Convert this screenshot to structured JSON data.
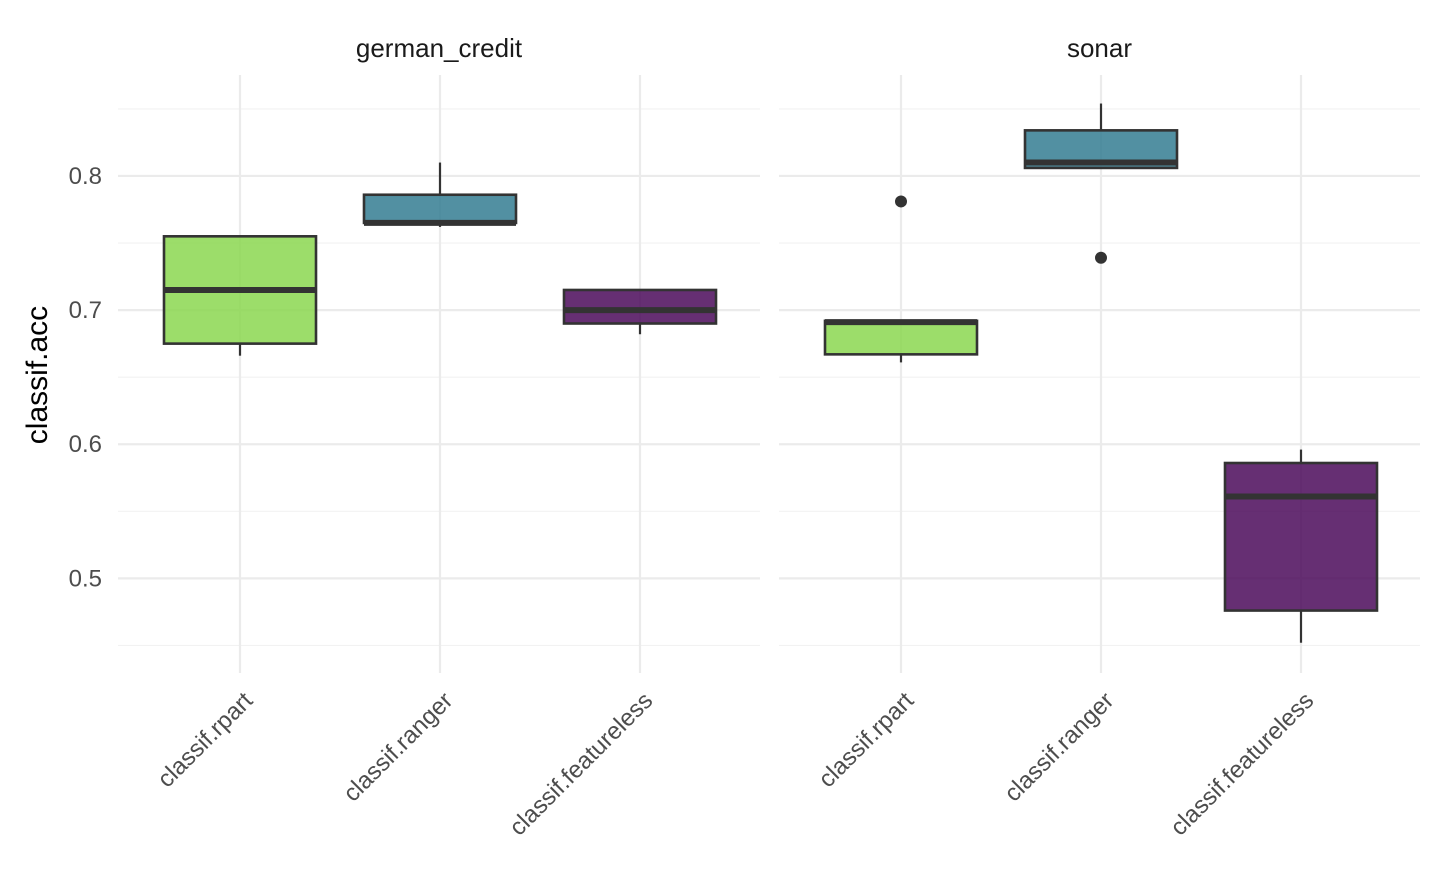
{
  "chart_data": {
    "type": "boxplot",
    "ylabel": "classif.acc",
    "xlabel": "",
    "ylim": [
      0.45,
      0.875
    ],
    "yticks": [
      0.5,
      0.6,
      0.7,
      0.8
    ],
    "ytick_labels": [
      "0.5",
      "0.6",
      "0.7",
      "0.8"
    ],
    "grid": true,
    "legend": "none",
    "categories": [
      "classif.rpart",
      "classif.ranger",
      "classif.featureless"
    ],
    "colors": {
      "classif.rpart": "#86d549",
      "classif.ranger": "#2c788e",
      "classif.featureless": "#440154"
    },
    "facets": [
      {
        "title": "german_credit",
        "boxes": [
          {
            "learner": "classif.rpart",
            "min": 0.666,
            "q1": 0.675,
            "median": 0.715,
            "q3": 0.755,
            "max": 0.755,
            "outliers": []
          },
          {
            "learner": "classif.ranger",
            "min": 0.762,
            "q1": 0.765,
            "median": 0.765,
            "q3": 0.786,
            "max": 0.81,
            "outliers": []
          },
          {
            "learner": "classif.featureless",
            "min": 0.682,
            "q1": 0.69,
            "median": 0.7,
            "q3": 0.715,
            "max": 0.715,
            "outliers": []
          }
        ]
      },
      {
        "title": "sonar",
        "boxes": [
          {
            "learner": "classif.rpart",
            "min": 0.661,
            "q1": 0.667,
            "median": 0.691,
            "q3": 0.692,
            "max": 0.692,
            "outliers": [
              0.781
            ]
          },
          {
            "learner": "classif.ranger",
            "min": 0.806,
            "q1": 0.806,
            "median": 0.81,
            "q3": 0.834,
            "max": 0.854,
            "outliers": [
              0.739
            ]
          },
          {
            "learner": "classif.featureless",
            "min": 0.452,
            "q1": 0.476,
            "median": 0.561,
            "q3": 0.586,
            "max": 0.596,
            "outliers": []
          }
        ]
      }
    ]
  }
}
